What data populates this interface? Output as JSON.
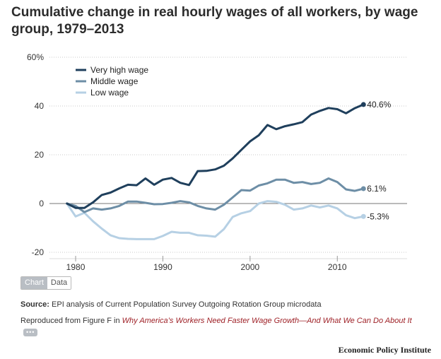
{
  "title": "Cumulative change in real hourly wages of all workers, by wage group, 1979–2013",
  "tabs": {
    "chart_label": "Chart",
    "data_label": "Data"
  },
  "source": {
    "label": "Source:",
    "text": " EPI analysis of Current Population Survey Outgoing Rotation Group microdata"
  },
  "reproduced": {
    "prefix": "Reproduced from Figure F in ",
    "link_text": "Why America’s Workers Need Faster Wage Growth—And What We Can Do About It",
    "more_label": "•••"
  },
  "brand": "Economic Policy Institute",
  "colors": {
    "very_high": "#1f3f5c",
    "middle": "#6d8ea6",
    "low": "#b6d0e4",
    "axis": "#555555"
  },
  "chart_data": {
    "type": "line",
    "x": [
      1979,
      1980,
      1981,
      1982,
      1983,
      1984,
      1985,
      1986,
      1987,
      1988,
      1989,
      1990,
      1991,
      1992,
      1993,
      1994,
      1995,
      1996,
      1997,
      1998,
      1999,
      2000,
      2001,
      2002,
      2003,
      2004,
      2005,
      2006,
      2007,
      2008,
      2009,
      2010,
      2011,
      2012,
      2013
    ],
    "series": [
      {
        "name": "Very high wage",
        "end_label": "40.6%",
        "values": [
          0,
          -1.8,
          -1.8,
          0.5,
          3.5,
          4.5,
          6.2,
          7.7,
          7.5,
          10.3,
          7.7,
          9.8,
          10.5,
          8.5,
          7.6,
          13.3,
          13.4,
          14.0,
          15.5,
          18.5,
          22.0,
          25.5,
          28.0,
          32.2,
          30.5,
          31.7,
          32.5,
          33.4,
          36.5,
          38.0,
          39.2,
          38.7,
          37.0,
          39.1,
          40.6
        ]
      },
      {
        "name": "Middle wage",
        "end_label": "6.1%",
        "values": [
          0,
          -1.0,
          -3.5,
          -2.0,
          -2.5,
          -2.0,
          -1.0,
          0.8,
          0.8,
          0.3,
          -0.3,
          -0.2,
          0.3,
          1.0,
          0.5,
          -1.0,
          -2.0,
          -2.5,
          -0.5,
          2.5,
          5.5,
          5.3,
          7.4,
          8.3,
          9.8,
          9.8,
          8.5,
          8.8,
          8.0,
          8.5,
          10.3,
          8.8,
          5.8,
          5.2,
          6.1
        ]
      },
      {
        "name": "Low wage",
        "end_label": "-5.3%",
        "values": [
          0,
          -5.3,
          -3.8,
          -7.3,
          -10.3,
          -13.0,
          -14.2,
          -14.5,
          -14.6,
          -14.6,
          -14.6,
          -13.3,
          -11.6,
          -12.0,
          -12.0,
          -13.0,
          -13.2,
          -13.6,
          -10.5,
          -5.5,
          -4.0,
          -3.1,
          0.0,
          1.0,
          0.7,
          -0.5,
          -2.5,
          -2.0,
          -0.8,
          -1.6,
          -0.8,
          -2.0,
          -4.8,
          -6.0,
          -5.3
        ]
      }
    ],
    "y_ticks": [
      "60%",
      "40",
      "20",
      "0",
      "-20"
    ],
    "y_tick_values": [
      60,
      40,
      20,
      0,
      -20
    ],
    "x_ticks": [
      1980,
      1990,
      2000,
      2010
    ],
    "xlim": [
      1977,
      2018
    ],
    "ylim": [
      -20,
      60
    ],
    "grid": true,
    "legend": "top-left"
  }
}
